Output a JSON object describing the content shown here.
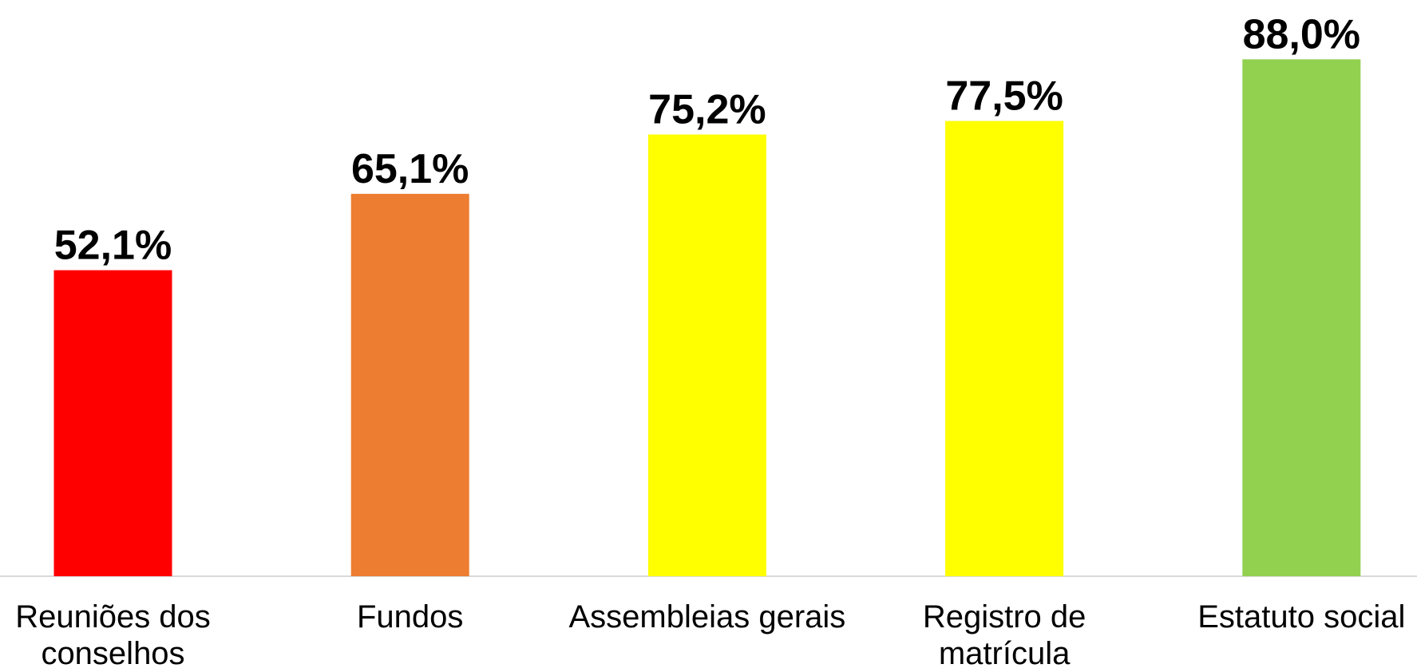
{
  "chart_data": {
    "type": "bar",
    "categories": [
      "Reuniões dos conselhos",
      "Fundos",
      "Assembleias gerais",
      "Registro de matrícula",
      "Estatuto social"
    ],
    "values": [
      52.1,
      65.1,
      75.2,
      77.5,
      88.0
    ],
    "value_labels": [
      "52,1%",
      "65,1%",
      "75,2%",
      "77,5%",
      "88,0%"
    ],
    "colors": [
      "#ff0000",
      "#ed7d31",
      "#ffff00",
      "#ffff00",
      "#92d050"
    ]
  }
}
